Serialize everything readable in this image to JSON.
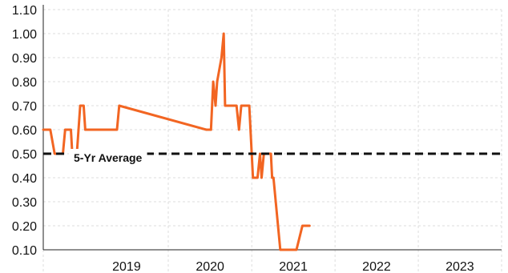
{
  "chart_data": {
    "type": "line",
    "xlim": [
      "2018-07-01",
      "2023-12-31"
    ],
    "ylim": [
      0.1,
      1.1
    ],
    "y_ticks": [
      "1.10",
      "1.00",
      "0.90",
      "0.80",
      "0.70",
      "0.60",
      "0.50",
      "0.40",
      "0.30",
      "0.20",
      "0.10"
    ],
    "x_ticks": [
      "2019",
      "2020",
      "2021",
      "2022",
      "2023"
    ],
    "grid": true,
    "series": [
      {
        "color": "#f26522",
        "points": [
          [
            "2018-07-01",
            0.6
          ],
          [
            "2018-08-01",
            0.6
          ],
          [
            "2018-08-20",
            0.5
          ],
          [
            "2018-09-25",
            0.5
          ],
          [
            "2018-10-05",
            0.6
          ],
          [
            "2018-10-30",
            0.6
          ],
          [
            "2018-11-05",
            0.5
          ],
          [
            "2018-11-25",
            0.5
          ],
          [
            "2018-12-10",
            0.7
          ],
          [
            "2018-12-25",
            0.7
          ],
          [
            "2019-01-01",
            0.6
          ],
          [
            "2019-05-20",
            0.6
          ],
          [
            "2019-05-30",
            0.7
          ],
          [
            "2020-06-15",
            0.6
          ],
          [
            "2020-07-05",
            0.6
          ],
          [
            "2020-07-15",
            0.8
          ],
          [
            "2020-07-25",
            0.7
          ],
          [
            "2020-08-01",
            0.8
          ],
          [
            "2020-08-20",
            0.9
          ],
          [
            "2020-08-30",
            1.0
          ],
          [
            "2020-09-05",
            0.7
          ],
          [
            "2020-10-25",
            0.7
          ],
          [
            "2020-11-05",
            0.6
          ],
          [
            "2020-11-15",
            0.7
          ],
          [
            "2020-12-20",
            0.7
          ],
          [
            "2021-01-05",
            0.4
          ],
          [
            "2021-01-25",
            0.4
          ],
          [
            "2021-02-05",
            0.5
          ],
          [
            "2021-02-12",
            0.4
          ],
          [
            "2021-02-22",
            0.5
          ],
          [
            "2021-03-25",
            0.5
          ],
          [
            "2021-03-30",
            0.4
          ],
          [
            "2021-04-05",
            0.4
          ],
          [
            "2021-05-05",
            0.1
          ],
          [
            "2021-07-15",
            0.1
          ],
          [
            "2021-08-10",
            0.2
          ],
          [
            "2021-09-10",
            0.2
          ]
        ]
      }
    ],
    "reference_line": {
      "label": "5-Yr Average",
      "value": 0.5,
      "color": "#111111",
      "style": "dashed"
    }
  }
}
